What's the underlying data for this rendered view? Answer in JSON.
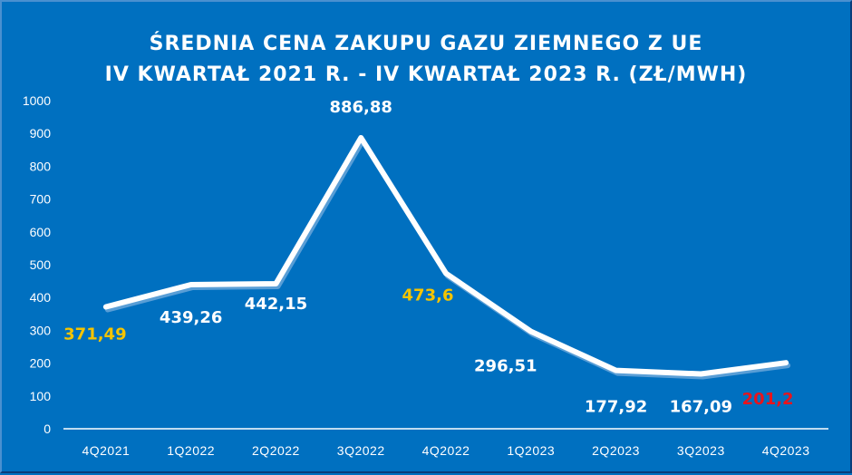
{
  "chart_data": {
    "type": "line",
    "title": "ŚREDNIA CENA ZAKUPU GAZU ZIEMNEGO Z UE",
    "subtitle": "IV KWARTAŁ 2021 R. - IV KWARTAŁ 2023 R. (ZŁ/MWH)",
    "xlabel": "",
    "ylabel": "",
    "ylim": [
      0,
      1000
    ],
    "yticks": [
      0,
      100,
      200,
      300,
      400,
      500,
      600,
      700,
      800,
      900,
      1000
    ],
    "grid": false,
    "legend": null,
    "categories": [
      "4Q2021",
      "1Q2022",
      "2Q2022",
      "3Q2022",
      "4Q2022",
      "1Q2023",
      "2Q2023",
      "3Q2023",
      "4Q2023"
    ],
    "series": [
      {
        "name": "Średnia cena zakupu gazu ziemnego z UE (zł/MWh)",
        "values": [
          371.49,
          439.26,
          442.15,
          886.88,
          473.6,
          296.51,
          177.92,
          167.09,
          201.2
        ]
      }
    ],
    "data_labels": [
      "371,49",
      "439,26",
      "442,15",
      "886,88",
      "473,6",
      "296,51",
      "177,92",
      "167,09",
      "201,2"
    ],
    "label_colors": [
      "#f5c400",
      "#ffffff",
      "#ffffff",
      "#ffffff",
      "#f5c400",
      "#ffffff",
      "#ffffff",
      "#ffffff",
      "#e8141c"
    ]
  },
  "colors": {
    "background": "#0070c0",
    "line": "#ffffff",
    "axis": "#ffffff",
    "highlight_yellow": "#f5c400",
    "highlight_red": "#e8141c"
  }
}
